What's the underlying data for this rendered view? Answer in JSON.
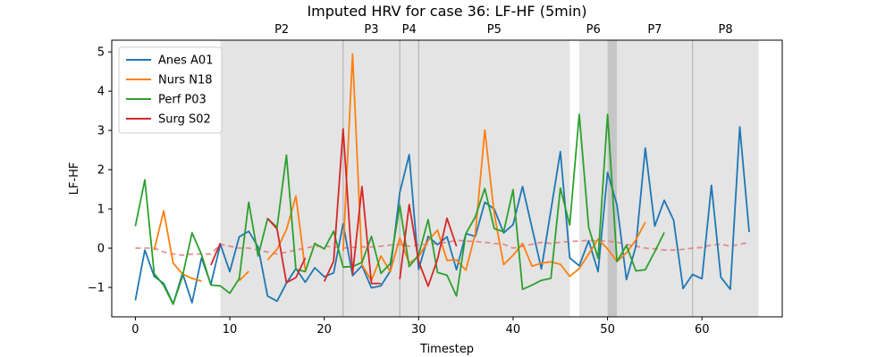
{
  "chart_data": {
    "type": "line",
    "title": "Imputed HRV for case 36: LF-HF (5min)",
    "xlabel": "Timestep",
    "ylabel": "LF-HF",
    "xlim": [
      -2.5,
      68.5
    ],
    "ylim": [
      -1.75,
      5.3
    ],
    "xticks": [
      0,
      10,
      20,
      30,
      40,
      50,
      60
    ],
    "yticks": [
      -1,
      0,
      1,
      2,
      3,
      4,
      5
    ],
    "grid": false,
    "legend_position": "top-left",
    "phases": [
      {
        "label": "P2",
        "start": 9,
        "end": 22
      },
      {
        "label": "P3",
        "start": 22,
        "end": 28
      },
      {
        "label": "P4",
        "start": 28,
        "end": 30
      },
      {
        "label": "P5",
        "start": 30,
        "end": 46
      },
      {
        "label": "P6",
        "start": 47,
        "end": 50
      },
      {
        "label": "P7",
        "start": 51,
        "end": 59
      },
      {
        "label": "P8",
        "start": 59,
        "end": 66
      }
    ],
    "dark_band": {
      "start": 50,
      "end": 51
    },
    "boundary_lines": [
      22,
      28,
      30,
      59
    ],
    "series": [
      {
        "name": "Anes A01",
        "color": "#1f77b4",
        "values": [
          -1.33,
          -0.05,
          -0.72,
          -0.9,
          -1.42,
          -0.64,
          -1.39,
          -0.25,
          -0.92,
          0.1,
          -0.6,
          0.29,
          0.43,
          0.03,
          -1.22,
          -1.35,
          -0.89,
          -0.52,
          -0.87,
          -0.5,
          -0.73,
          -0.63,
          0.62,
          -0.7,
          -0.45,
          -1.01,
          -0.96,
          -0.58,
          1.42,
          2.38,
          -0.54,
          0.3,
          0.09,
          0.29,
          -0.55,
          0.37,
          0.3,
          1.17,
          1.0,
          0.39,
          0.6,
          1.57,
          0.52,
          -0.53,
          0.96,
          2.46,
          -0.25,
          -0.45,
          0.19,
          -0.6,
          1.93,
          1.11,
          -0.8,
          0.05,
          2.55,
          0.56,
          1.22,
          0.71,
          -1.03,
          -0.67,
          -0.78,
          1.6,
          -0.74,
          -1.05,
          3.09,
          0.41
        ]
      },
      {
        "name": "Nurs N18",
        "color": "#ff7f0e",
        "values": [
          null,
          null,
          -0.05,
          0.95,
          -0.38,
          -0.66,
          -0.77,
          -0.84,
          null,
          null,
          null,
          -0.83,
          -0.59,
          null,
          -0.3,
          -0.03,
          0.47,
          1.33,
          -0.56,
          null,
          null,
          null,
          -0.07,
          4.95,
          -0.42,
          -0.83,
          -0.2,
          -0.6,
          0.26,
          -0.38,
          -0.22,
          0.19,
          0.46,
          -0.31,
          -0.3,
          -0.56,
          0.37,
          3.01,
          0.88,
          -0.42,
          -0.18,
          0.12,
          -0.46,
          -0.38,
          -0.35,
          -0.41,
          -0.72,
          -0.52,
          -0.15,
          0.23,
          -0.02,
          -0.34,
          -0.12,
          0.21,
          0.66
        ]
      },
      {
        "name": "Perf P03",
        "color": "#2ca02c",
        "values": [
          0.56,
          1.74,
          -0.65,
          -0.95,
          -1.43,
          -0.71,
          0.39,
          -0.16,
          -0.94,
          -0.96,
          -1.15,
          -0.78,
          1.17,
          -0.2,
          0.75,
          0.53,
          2.37,
          -0.54,
          -0.6,
          0.12,
          -0.02,
          0.43,
          -0.48,
          -0.47,
          -0.36,
          0.3,
          -0.64,
          -0.39,
          1.09,
          -0.47,
          -0.17,
          0.73,
          -0.62,
          -0.69,
          -1.22,
          0.37,
          0.8,
          1.52,
          0.5,
          0.42,
          1.49,
          -1.05,
          -0.94,
          -0.82,
          -0.77,
          1.53,
          0.59,
          3.41,
          0.53,
          -0.26,
          3.41,
          -0.34,
          0.07,
          -0.58,
          -0.55,
          -0.09,
          0.4
        ]
      },
      {
        "name": "Surg S02",
        "color": "#d62728",
        "values": [
          null,
          null,
          null,
          null,
          null,
          null,
          null,
          null,
          -0.43,
          0.13,
          null,
          null,
          null,
          null,
          0.76,
          0.49,
          -0.88,
          -0.75,
          -0.25,
          null,
          -0.85,
          -0.33,
          3.04,
          -0.65,
          1.57,
          -0.9,
          -0.9,
          null,
          -0.79,
          1.11,
          -0.34,
          -0.97,
          -0.28,
          0.76,
          0.05
        ]
      },
      {
        "name": "imputed",
        "color": "#e07b7b",
        "dashed": true,
        "values": [
          0.0,
          0.0,
          0.0,
          -0.1,
          -0.15,
          -0.18,
          -0.15,
          -0.15,
          -0.15,
          0.1,
          0.05,
          0.0,
          0.0,
          -0.05,
          -0.1,
          -0.15,
          -0.1,
          -0.05,
          0.0,
          0.05,
          0.05,
          0.03,
          0.0,
          0.02,
          0.03,
          0.03,
          0.05,
          0.08,
          0.1,
          0.05,
          0.08,
          0.1,
          0.12,
          0.15,
          0.2,
          0.18,
          0.17,
          0.15,
          0.12,
          0.1,
          0.0,
          0.05,
          0.1,
          0.15,
          0.12,
          0.15,
          0.17,
          0.18,
          0.2,
          0.18,
          0.18,
          0.15,
          0.1,
          0.05,
          0.0,
          -0.02,
          -0.05,
          -0.05,
          -0.03,
          0.0,
          0.02,
          0.08,
          0.1,
          0.05,
          0.1,
          0.15
        ]
      }
    ]
  }
}
